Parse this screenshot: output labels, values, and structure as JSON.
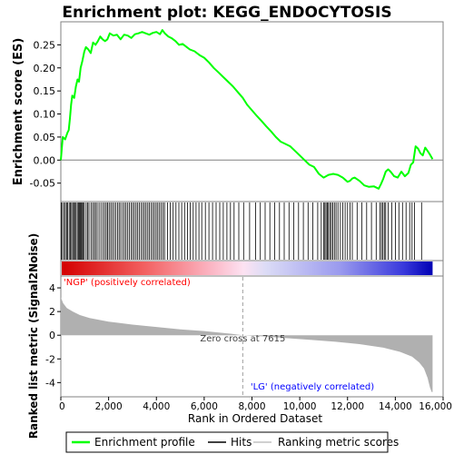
{
  "chart_data": {
    "title": "Enrichment plot: KEGG_ENDOCYTOSIS",
    "type": "line",
    "x_axis": {
      "label": "Rank in Ordered Dataset",
      "range": [
        0,
        16000
      ],
      "ticks": [
        0,
        2000,
        4000,
        6000,
        8000,
        10000,
        12000,
        14000,
        16000
      ],
      "tick_labels": [
        "0",
        "2,000",
        "4,000",
        "6,000",
        "8,000",
        "10,000",
        "12,000",
        "14,000",
        "16,000"
      ]
    },
    "es_panel": {
      "ylabel": "Enrichment score (ES)",
      "ylim": [
        -0.09,
        0.3
      ],
      "yticks": [
        -0.05,
        0.0,
        0.05,
        0.1,
        0.15,
        0.2,
        0.25
      ],
      "ytick_labels": [
        "-0.05",
        "0.00",
        "0.05",
        "0.10",
        "0.15",
        "0.20",
        "0.25"
      ],
      "series_name": "Enrichment profile",
      "color": "#00ff00",
      "points": [
        [
          0,
          0.0
        ],
        [
          80,
          0.05
        ],
        [
          180,
          0.045
        ],
        [
          280,
          0.06
        ],
        [
          330,
          0.065
        ],
        [
          380,
          0.09
        ],
        [
          430,
          0.12
        ],
        [
          480,
          0.14
        ],
        [
          560,
          0.135
        ],
        [
          630,
          0.16
        ],
        [
          700,
          0.175
        ],
        [
          760,
          0.17
        ],
        [
          830,
          0.2
        ],
        [
          900,
          0.215
        ],
        [
          980,
          0.235
        ],
        [
          1050,
          0.245
        ],
        [
          1150,
          0.24
        ],
        [
          1250,
          0.232
        ],
        [
          1350,
          0.255
        ],
        [
          1450,
          0.25
        ],
        [
          1550,
          0.258
        ],
        [
          1650,
          0.268
        ],
        [
          1750,
          0.262
        ],
        [
          1850,
          0.258
        ],
        [
          1950,
          0.262
        ],
        [
          2050,
          0.275
        ],
        [
          2200,
          0.27
        ],
        [
          2350,
          0.272
        ],
        [
          2500,
          0.262
        ],
        [
          2650,
          0.272
        ],
        [
          2800,
          0.27
        ],
        [
          2950,
          0.265
        ],
        [
          3100,
          0.273
        ],
        [
          3250,
          0.275
        ],
        [
          3400,
          0.278
        ],
        [
          3550,
          0.275
        ],
        [
          3700,
          0.272
        ],
        [
          3850,
          0.276
        ],
        [
          4000,
          0.278
        ],
        [
          4150,
          0.273
        ],
        [
          4250,
          0.282
        ],
        [
          4350,
          0.275
        ],
        [
          4500,
          0.268
        ],
        [
          4650,
          0.264
        ],
        [
          4800,
          0.258
        ],
        [
          4950,
          0.25
        ],
        [
          5100,
          0.252
        ],
        [
          5250,
          0.246
        ],
        [
          5400,
          0.24
        ],
        [
          5600,
          0.236
        ],
        [
          5800,
          0.228
        ],
        [
          6000,
          0.222
        ],
        [
          6200,
          0.212
        ],
        [
          6400,
          0.2
        ],
        [
          6600,
          0.19
        ],
        [
          6800,
          0.18
        ],
        [
          7000,
          0.17
        ],
        [
          7200,
          0.16
        ],
        [
          7400,
          0.148
        ],
        [
          7615,
          0.135
        ],
        [
          7800,
          0.12
        ],
        [
          8000,
          0.108
        ],
        [
          8200,
          0.096
        ],
        [
          8400,
          0.085
        ],
        [
          8600,
          0.073
        ],
        [
          8800,
          0.062
        ],
        [
          9000,
          0.05
        ],
        [
          9200,
          0.04
        ],
        [
          9400,
          0.035
        ],
        [
          9600,
          0.03
        ],
        [
          9800,
          0.02
        ],
        [
          10000,
          0.01
        ],
        [
          10200,
          0.0
        ],
        [
          10400,
          -0.01
        ],
        [
          10600,
          -0.015
        ],
        [
          10800,
          -0.03
        ],
        [
          11000,
          -0.038
        ],
        [
          11100,
          -0.035
        ],
        [
          11200,
          -0.032
        ],
        [
          11400,
          -0.03
        ],
        [
          11600,
          -0.032
        ],
        [
          11800,
          -0.038
        ],
        [
          12000,
          -0.047
        ],
        [
          12100,
          -0.045
        ],
        [
          12200,
          -0.04
        ],
        [
          12300,
          -0.038
        ],
        [
          12500,
          -0.045
        ],
        [
          12700,
          -0.055
        ],
        [
          12900,
          -0.058
        ],
        [
          13100,
          -0.057
        ],
        [
          13300,
          -0.062
        ],
        [
          13400,
          -0.052
        ],
        [
          13500,
          -0.04
        ],
        [
          13600,
          -0.025
        ],
        [
          13700,
          -0.02
        ],
        [
          13800,
          -0.025
        ],
        [
          13950,
          -0.035
        ],
        [
          14100,
          -0.038
        ],
        [
          14250,
          -0.025
        ],
        [
          14400,
          -0.035
        ],
        [
          14550,
          -0.028
        ],
        [
          14650,
          -0.01
        ],
        [
          14750,
          -0.005
        ],
        [
          14850,
          0.03
        ],
        [
          14950,
          0.025
        ],
        [
          15050,
          0.015
        ],
        [
          15150,
          0.01
        ],
        [
          15250,
          0.027
        ],
        [
          15350,
          0.02
        ],
        [
          15450,
          0.012
        ],
        [
          15560,
          0.002
        ]
      ]
    },
    "hits_panel": {
      "legend_label": "Hits",
      "positions": [
        20,
        70,
        130,
        190,
        240,
        290,
        350,
        400,
        450,
        500,
        540,
        590,
        640,
        690,
        740,
        780,
        820,
        860,
        900,
        940,
        980,
        1060,
        1120,
        1180,
        1260,
        1330,
        1400,
        1450,
        1520,
        1600,
        1680,
        1760,
        1830,
        1900,
        1960,
        2020,
        2090,
        2160,
        2230,
        2300,
        2370,
        2440,
        2510,
        2590,
        2660,
        2730,
        2800,
        2870,
        2940,
        3010,
        3080,
        3150,
        3220,
        3290,
        3360,
        3430,
        3500,
        3570,
        3640,
        3710,
        3780,
        3850,
        3920,
        3990,
        4060,
        4130,
        4200,
        4270,
        4340,
        4460,
        4580,
        4700,
        4820,
        4940,
        5060,
        5180,
        5300,
        5420,
        5540,
        5660,
        5780,
        5900,
        6050,
        6200,
        6350,
        6500,
        6650,
        6800,
        6950,
        7100,
        7250,
        7450,
        7650,
        7900,
        8150,
        8350,
        8550,
        8750,
        8950,
        9150,
        9350,
        9550,
        9750,
        9950,
        10150,
        10350,
        10550,
        10750,
        10900,
        11000,
        11050,
        11100,
        11150,
        11200,
        11260,
        11320,
        11380,
        11450,
        11520,
        11600,
        11700,
        11800,
        11900,
        12000,
        12100,
        12200,
        12400,
        12600,
        12800,
        13000,
        13200,
        13350,
        13420,
        13480,
        13540,
        13600,
        13700,
        13850,
        14000,
        14150,
        14300,
        14450,
        14600,
        14700,
        14800,
        15100
      ]
    },
    "metric_panel": {
      "ylabel": "Ranked list metric (Signal2Noise)",
      "legend_label": "Ranking metric scores",
      "ylim": [
        -5.2,
        5
      ],
      "yticks": [
        -4,
        -2,
        0,
        2,
        4
      ],
      "ytick_labels": [
        "-4",
        "-2",
        "0",
        "2",
        "4"
      ],
      "profile": [
        [
          0,
          3.2
        ],
        [
          100,
          2.7
        ],
        [
          250,
          2.3
        ],
        [
          500,
          2.0
        ],
        [
          800,
          1.7
        ],
        [
          1200,
          1.45
        ],
        [
          1600,
          1.3
        ],
        [
          2000,
          1.15
        ],
        [
          3000,
          0.9
        ],
        [
          4000,
          0.7
        ],
        [
          5000,
          0.5
        ],
        [
          6000,
          0.35
        ],
        [
          7000,
          0.15
        ],
        [
          7615,
          0.0
        ],
        [
          8500,
          -0.1
        ],
        [
          9500,
          -0.25
        ],
        [
          10500,
          -0.4
        ],
        [
          11500,
          -0.55
        ],
        [
          12500,
          -0.75
        ],
        [
          13500,
          -1.05
        ],
        [
          14200,
          -1.4
        ],
        [
          14700,
          -1.8
        ],
        [
          15000,
          -2.3
        ],
        [
          15200,
          -2.8
        ],
        [
          15350,
          -3.6
        ],
        [
          15450,
          -4.4
        ],
        [
          15520,
          -4.8
        ],
        [
          15560,
          -4.8
        ]
      ],
      "zero_cross_label": "Zero cross at 7615",
      "zero_cross": 7615,
      "pos_label": "'NGP' (positively correlated)",
      "neg_label": "'LG' (negatively correlated)",
      "pos_label_color": "#ff0000",
      "neg_label_color": "#0000ff"
    },
    "legend": {
      "position": "bottom",
      "labels": [
        "Enrichment profile",
        "Hits",
        "Ranking metric scores"
      ]
    }
  }
}
